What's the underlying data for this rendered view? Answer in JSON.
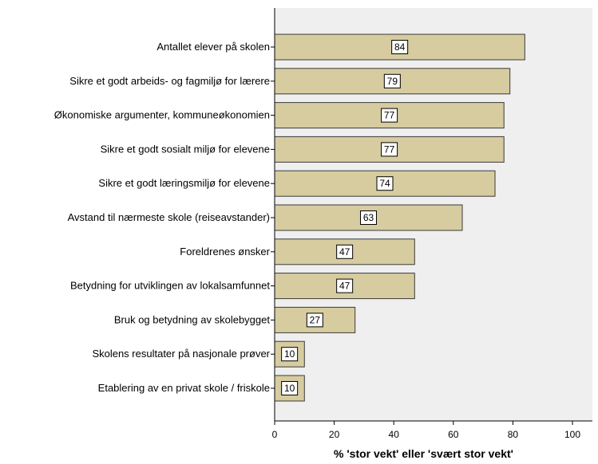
{
  "chart_data": {
    "type": "bar",
    "orientation": "horizontal",
    "categories": [
      "Antallet elever på skolen",
      "Sikre et godt arbeids- og fagmiljø for lærere",
      "Økonomiske argumenter, kommuneøkonomien",
      "Sikre et godt sosialt miljø for elevene",
      "Sikre et godt læringsmiljø for elevene",
      "Avstand til nærmeste skole (reiseavstander)",
      "Foreldrenes ønsker",
      "Betydning for utviklingen av lokalsamfunnet",
      "Bruk og betydning av skolebygget",
      "Skolens resultater på nasjonale prøver",
      "Etablering av en privat skole / friskole"
    ],
    "values": [
      84,
      79,
      77,
      77,
      74,
      63,
      47,
      47,
      27,
      10,
      10
    ],
    "data_labels": [
      "84",
      "79",
      "77",
      "77",
      "74",
      "63",
      "47",
      "47",
      "27",
      "10",
      "10"
    ],
    "xlabel": "% 'stor vekt' eller 'svært stor vekt'",
    "ylabel": "",
    "xlim": [
      0,
      100
    ],
    "xticks": [
      0,
      20,
      40,
      60,
      80,
      100
    ],
    "xtick_labels": [
      "0",
      "20",
      "40",
      "60",
      "80",
      "100"
    ],
    "grid": false,
    "legend": "none",
    "colors": {
      "bar_fill": "#d6cca0",
      "bar_stroke": "#3a3a3a",
      "plot_background": "#efefef",
      "axis": "#000000",
      "label_box_fill": "#ffffff"
    }
  }
}
